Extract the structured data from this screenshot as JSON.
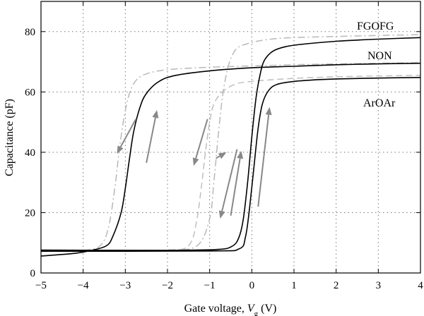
{
  "chart_data": {
    "type": "line",
    "xlabel": "Gate voltage, ",
    "xlabel_var": "V",
    "xlabel_sub": "g",
    "xlabel_unit": " (V)",
    "ylabel": "Capacitance (pF)",
    "xlim": [
      -5,
      4
    ],
    "ylim": [
      0,
      90
    ],
    "xticks": [
      -5,
      -4,
      -3,
      -2,
      -1,
      0,
      1,
      2,
      3,
      4
    ],
    "yticks": [
      0,
      20,
      40,
      60,
      80
    ],
    "xtick_labels": [
      "−5",
      "−4",
      "−3",
      "−2",
      "−1",
      "0",
      "1",
      "2",
      "3",
      "4"
    ],
    "ytick_labels": [
      "0",
      "20",
      "40",
      "60",
      "80"
    ],
    "grid": true,
    "series": [
      {
        "name": "FGOFG",
        "style": "dash-dot",
        "color": "#b8b8b8",
        "branches": [
          {
            "x": [
              -5,
              -4,
              -3.6,
              -3.4,
              -3.25,
              -3.15,
              -3.05,
              -2.95,
              -2.85,
              -2.7,
              -2.5,
              -2.2,
              -1.8,
              -1.0,
              0,
              1,
              2,
              3,
              4
            ],
            "y": [
              7.3,
              7.5,
              9,
              15,
              28,
              40,
              50,
              57,
              61.5,
              64.5,
              66,
              67,
              67.6,
              68.2,
              68.6,
              69,
              69.3,
              69.5,
              69.7
            ]
          },
          {
            "x": [
              -5,
              -3,
              -2,
              -1.3,
              -1.0,
              -0.9,
              -0.8,
              -0.7,
              -0.6,
              -0.5,
              -0.35,
              -0.1,
              0.2,
              0.6,
              1,
              2,
              3,
              4
            ],
            "y": [
              7.3,
              7.4,
              7.6,
              9,
              18,
              30,
              45,
              58,
              66,
              71,
              74.5,
              76,
              77,
              77.7,
              78,
              78.4,
              78.7,
              79
            ]
          }
        ]
      },
      {
        "name": "NON",
        "style": "dashed",
        "color": "#c0c0c0",
        "branches": [
          {
            "x": [
              -5,
              -3,
              -1.8,
              -1.45,
              -1.3,
              -1.2,
              -1.1,
              -1.0,
              -0.9,
              -0.7,
              -0.4,
              0,
              1,
              2,
              3,
              4
            ],
            "y": [
              7.2,
              7.3,
              7.6,
              10,
              18,
              28,
              40,
              50,
              56,
              60,
              62.5,
              63.5,
              64.5,
              65,
              65.3,
              65.5
            ]
          }
        ]
      },
      {
        "name": "ArOAr",
        "style": "solid",
        "color": "#000000",
        "branches": [
          {
            "x": [
              -5,
              -4.2,
              -3.8,
              -3.45,
              -3.3,
              -3.1,
              -3.0,
              -2.9,
              -2.8,
              -2.65,
              -2.5,
              -2.2,
              -1.8,
              -1.0,
              0,
              1,
              2,
              3,
              4
            ],
            "y": [
              5.6,
              6.5,
              7.5,
              9,
              12,
              20,
              28,
              38,
              47,
              55,
              59.5,
              63.5,
              65.5,
              67,
              68,
              68.5,
              69,
              69.3,
              69.5
            ]
          },
          {
            "x": [
              -5,
              -2,
              -0.8,
              -0.45,
              -0.3,
              -0.2,
              -0.1,
              0.0,
              0.1,
              0.2,
              0.3,
              0.5,
              0.8,
              1.2,
              2,
              3,
              4
            ],
            "y": [
              7.6,
              7.5,
              7.8,
              9,
              12,
              18,
              30,
              45,
              58,
              66,
              70.5,
              73.5,
              75,
              75.8,
              76.8,
              77.5,
              78
            ]
          },
          {
            "x": [
              -5,
              -1,
              -0.3,
              -0.15,
              -0.05,
              0.05,
              0.15,
              0.25,
              0.4,
              0.6,
              1,
              1.5,
              2,
              3,
              4
            ],
            "y": [
              7.2,
              7.3,
              8,
              12,
              22,
              35,
              48,
              56,
              60.5,
              62.5,
              63.5,
              64,
              64.3,
              64.6,
              64.8
            ]
          }
        ]
      }
    ],
    "arrows": [
      {
        "from": [
          -2.75,
          51
        ],
        "to": [
          -3.2,
          39.5
        ]
      },
      {
        "from": [
          -2.5,
          36.5
        ],
        "to": [
          -2.25,
          54
        ]
      },
      {
        "from": [
          -1.05,
          51
        ],
        "to": [
          -1.38,
          35.5
        ]
      },
      {
        "from": [
          -0.85,
          38
        ],
        "to": [
          -0.6,
          40
        ]
      },
      {
        "from": [
          -0.35,
          41
        ],
        "to": [
          -0.75,
          18
        ]
      },
      {
        "from": [
          -0.5,
          19
        ],
        "to": [
          -0.25,
          40.5
        ]
      },
      {
        "from": [
          0.15,
          22
        ],
        "to": [
          0.42,
          55
        ]
      }
    ]
  },
  "labels": {
    "fgofg": "FGOFG",
    "non": "NON",
    "aroar": "ArOAr"
  }
}
